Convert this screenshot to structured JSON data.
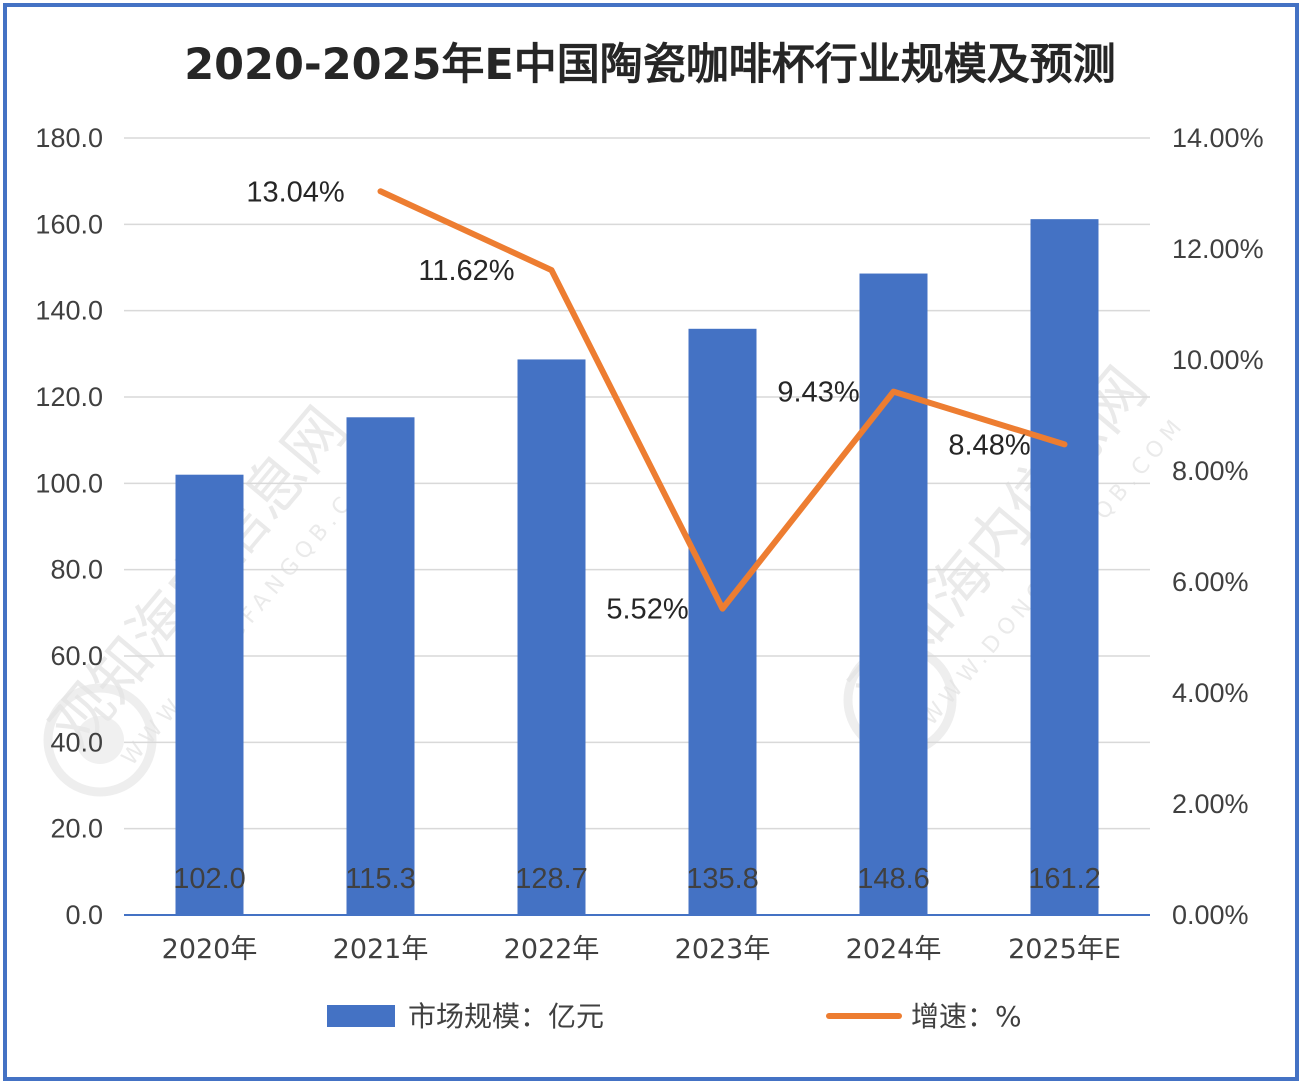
{
  "chart_data": {
    "type": "bar",
    "title": "2020-2025年E中国陶瓷咖啡杯行业规模及预测",
    "categories": [
      "2020年",
      "2021年",
      "2022年",
      "2023年",
      "2024年",
      "2025年E"
    ],
    "series": [
      {
        "name": "市场规模：亿元",
        "type": "bar",
        "axis": "left",
        "values": [
          102.0,
          115.3,
          128.7,
          135.8,
          148.6,
          161.2
        ],
        "labels": [
          "102.0",
          "115.3",
          "128.7",
          "135.8",
          "148.6",
          "161.2"
        ],
        "color": "#4472c4"
      },
      {
        "name": "增速：%",
        "type": "line",
        "axis": "right",
        "values": [
          null,
          13.04,
          11.62,
          5.52,
          9.43,
          8.48
        ],
        "labels": [
          "",
          "13.04%",
          "11.62%",
          "5.52%",
          "9.43%",
          "8.48%"
        ],
        "color": "#ed7d31"
      }
    ],
    "ylim_left": [
      0,
      180
    ],
    "yticks_left": [
      "0.0",
      "20.0",
      "40.0",
      "60.0",
      "80.0",
      "100.0",
      "120.0",
      "140.0",
      "160.0",
      "180.0"
    ],
    "ylim_right": [
      0,
      14
    ],
    "yticks_right": [
      "0.00%",
      "2.00%",
      "4.00%",
      "6.00%",
      "8.00%",
      "10.00%",
      "12.00%",
      "14.00%"
    ],
    "grid": true,
    "legend_position": "bottom"
  },
  "watermark": {
    "text": "观知海内信息网",
    "url": "WWW.DONGFANGQB.COM"
  },
  "colors": {
    "frame": "#4472c4",
    "bar": "#4472c4",
    "line": "#ed7d31",
    "grid": "#d9d9d9"
  }
}
